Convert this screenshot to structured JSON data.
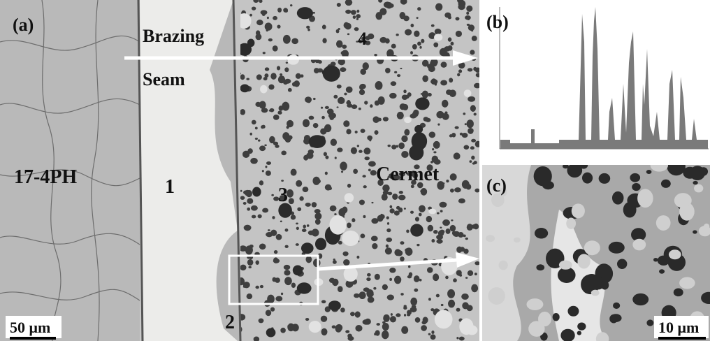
{
  "panel_a": {
    "label": "(a)",
    "regions": {
      "steel": "17-4PH",
      "seam_top": "Brazing",
      "seam_bottom": "Seam",
      "cermet": "Cermet"
    },
    "points": [
      "1",
      "2",
      "3",
      "4"
    ],
    "scale": "50 μm"
  },
  "panel_b": {
    "label": "(b)"
  },
  "panel_c": {
    "label": "(c)",
    "scale": "10 μm"
  }
}
